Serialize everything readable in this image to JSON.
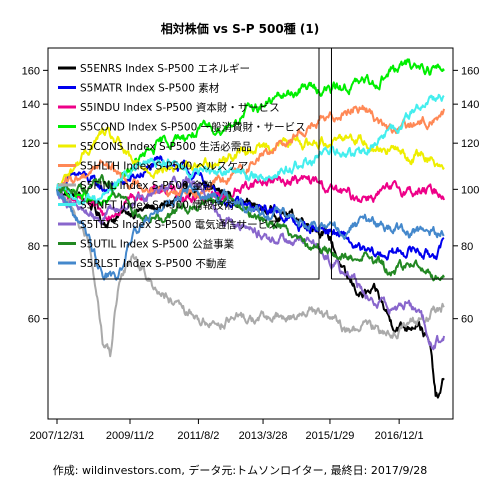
{
  "caption": "作成: wildinvestors.com, データ元:トムソンロイター, 最終日: 2017/9/28",
  "chart_data": {
    "type": "line",
    "title": "相対株価 vs S-P 500種 (1)",
    "xlabel": "",
    "ylabel": "",
    "y_scale": "log",
    "ylim": [
      43,
      168
    ],
    "y_ticks": [
      60,
      80,
      100,
      120,
      140,
      160
    ],
    "x_tick_labels": [
      "2007/12/31",
      "2009/11/2",
      "2011/8/2",
      "2013/3/28",
      "2015/1/29",
      "2016/12/1"
    ],
    "x_tick_index": [
      0,
      96,
      186,
      271,
      359,
      450
    ],
    "n_points": 510,
    "vertical_marker_index": 361,
    "grid": false,
    "legend_position": "top-left",
    "series": [
      {
        "name": "S5ENRS Index S-P500 エネルギー",
        "color": "#000000",
        "points": [
          [
            0,
            100
          ],
          [
            40,
            96
          ],
          [
            60,
            88
          ],
          [
            100,
            92
          ],
          [
            140,
            93
          ],
          [
            180,
            100
          ],
          [
            210,
            100
          ],
          [
            240,
            96
          ],
          [
            270,
            92
          ],
          [
            300,
            91
          ],
          [
            330,
            88
          ],
          [
            345,
            86
          ],
          [
            360,
            82
          ],
          [
            380,
            70
          ],
          [
            400,
            66
          ],
          [
            420,
            66
          ],
          [
            440,
            59
          ],
          [
            460,
            58
          ],
          [
            475,
            60
          ],
          [
            490,
            54
          ],
          [
            498,
            44
          ],
          [
            503,
            44
          ],
          [
            509,
            47
          ]
        ]
      },
      {
        "name": "S5MATR Index S-P500 素材",
        "color": "#0000ee",
        "points": [
          [
            0,
            100
          ],
          [
            30,
            106
          ],
          [
            60,
            100
          ],
          [
            100,
            104
          ],
          [
            140,
            112
          ],
          [
            180,
            106
          ],
          [
            220,
            96
          ],
          [
            260,
            92
          ],
          [
            290,
            92
          ],
          [
            320,
            86
          ],
          [
            345,
            86
          ],
          [
            360,
            85
          ],
          [
            380,
            82
          ],
          [
            400,
            78
          ],
          [
            420,
            77
          ],
          [
            450,
            78
          ],
          [
            470,
            79
          ],
          [
            490,
            77
          ],
          [
            509,
            80
          ]
        ]
      },
      {
        "name": "S5INDU Index S-P500 資本財・サービス",
        "color": "#ee0088",
        "points": [
          [
            0,
            100
          ],
          [
            30,
            95
          ],
          [
            60,
            90
          ],
          [
            100,
            97
          ],
          [
            140,
            100
          ],
          [
            180,
            97
          ],
          [
            220,
            97
          ],
          [
            260,
            103
          ],
          [
            300,
            104
          ],
          [
            340,
            103
          ],
          [
            360,
            100
          ],
          [
            390,
            97
          ],
          [
            420,
            98
          ],
          [
            450,
            100
          ],
          [
            480,
            99
          ],
          [
            509,
            99
          ]
        ]
      },
      {
        "name": "S5COND Index S-P500 一般消費財・サービス",
        "color": "#00ee00",
        "points": [
          [
            0,
            100
          ],
          [
            30,
            98
          ],
          [
            60,
            93
          ],
          [
            100,
            110
          ],
          [
            140,
            120
          ],
          [
            180,
            125
          ],
          [
            220,
            128
          ],
          [
            260,
            138
          ],
          [
            300,
            145
          ],
          [
            330,
            150
          ],
          [
            360,
            148
          ],
          [
            380,
            150
          ],
          [
            400,
            152
          ],
          [
            420,
            153
          ],
          [
            440,
            160
          ],
          [
            460,
            163
          ],
          [
            480,
            163
          ],
          [
            495,
            161
          ],
          [
            509,
            160
          ]
        ]
      },
      {
        "name": "S5CONS Index S-P500 生活必需品",
        "color": "#eeee00",
        "points": [
          [
            0,
            100
          ],
          [
            30,
            112
          ],
          [
            60,
            125
          ],
          [
            80,
            120
          ],
          [
            100,
            110
          ],
          [
            140,
            108
          ],
          [
            180,
            110
          ],
          [
            220,
            113
          ],
          [
            260,
            118
          ],
          [
            300,
            120
          ],
          [
            340,
            120
          ],
          [
            360,
            122
          ],
          [
            380,
            124
          ],
          [
            400,
            122
          ],
          [
            420,
            118
          ],
          [
            440,
            118
          ],
          [
            460,
            113
          ],
          [
            480,
            115
          ],
          [
            500,
            112
          ],
          [
            509,
            110
          ]
        ]
      },
      {
        "name": "S5HLTH Index S-P500 ヘルスケア",
        "color": "#ff8855",
        "points": [
          [
            0,
            100
          ],
          [
            30,
            105
          ],
          [
            60,
            112
          ],
          [
            100,
            102
          ],
          [
            140,
            100
          ],
          [
            180,
            100
          ],
          [
            220,
            103
          ],
          [
            260,
            112
          ],
          [
            300,
            121
          ],
          [
            330,
            128
          ],
          [
            360,
            132
          ],
          [
            380,
            138
          ],
          [
            400,
            139
          ],
          [
            420,
            133
          ],
          [
            440,
            125
          ],
          [
            460,
            128
          ],
          [
            480,
            130
          ],
          [
            500,
            133
          ],
          [
            509,
            135
          ]
        ]
      },
      {
        "name": "S5FINL Index S-P500 金融",
        "color": "#aaaaaa",
        "points": [
          [
            0,
            100
          ],
          [
            20,
            92
          ],
          [
            40,
            82
          ],
          [
            60,
            55
          ],
          [
            70,
            52
          ],
          [
            80,
            66
          ],
          [
            100,
            78
          ],
          [
            120,
            70
          ],
          [
            160,
            62
          ],
          [
            200,
            59
          ],
          [
            240,
            60
          ],
          [
            270,
            60
          ],
          [
            300,
            60
          ],
          [
            330,
            62
          ],
          [
            360,
            60
          ],
          [
            380,
            57
          ],
          [
            400,
            58
          ],
          [
            420,
            58
          ],
          [
            440,
            57
          ],
          [
            460,
            58
          ],
          [
            480,
            60
          ],
          [
            500,
            62
          ],
          [
            509,
            63
          ]
        ]
      },
      {
        "name": "S5INFT Index S-P500 情報技術",
        "color": "#44eeee",
        "points": [
          [
            0,
            100
          ],
          [
            30,
            96
          ],
          [
            60,
            97
          ],
          [
            100,
            108
          ],
          [
            140,
            112
          ],
          [
            180,
            106
          ],
          [
            220,
            108
          ],
          [
            260,
            105
          ],
          [
            300,
            108
          ],
          [
            340,
            113
          ],
          [
            360,
            116
          ],
          [
            380,
            115
          ],
          [
            400,
            114
          ],
          [
            420,
            120
          ],
          [
            440,
            126
          ],
          [
            460,
            132
          ],
          [
            480,
            140
          ],
          [
            495,
            144
          ],
          [
            509,
            144
          ]
        ]
      },
      {
        "name": "S5TELS Index S-P500 電気通信サービス",
        "color": "#8866cc",
        "points": [
          [
            0,
            100
          ],
          [
            30,
            92
          ],
          [
            60,
            90
          ],
          [
            100,
            95
          ],
          [
            140,
            102
          ],
          [
            180,
            104
          ],
          [
            220,
            90
          ],
          [
            260,
            84
          ],
          [
            300,
            82
          ],
          [
            340,
            80
          ],
          [
            360,
            76
          ],
          [
            380,
            72
          ],
          [
            400,
            68
          ],
          [
            420,
            64
          ],
          [
            440,
            62
          ],
          [
            460,
            64
          ],
          [
            480,
            60
          ],
          [
            495,
            54
          ],
          [
            509,
            56
          ]
        ]
      },
      {
        "name": "S5UTIL Index S-P500 公益事業",
        "color": "#228822",
        "points": [
          [
            0,
            100
          ],
          [
            30,
            100
          ],
          [
            60,
            104
          ],
          [
            100,
            92
          ],
          [
            140,
            90
          ],
          [
            180,
            95
          ],
          [
            220,
            97
          ],
          [
            260,
            90
          ],
          [
            300,
            86
          ],
          [
            340,
            80
          ],
          [
            360,
            78
          ],
          [
            380,
            76
          ],
          [
            400,
            78
          ],
          [
            420,
            75
          ],
          [
            440,
            72
          ],
          [
            460,
            74
          ],
          [
            480,
            74
          ],
          [
            495,
            71
          ],
          [
            509,
            71
          ]
        ]
      },
      {
        "name": "S5RLST Index S-P500 不動産",
        "color": "#4488cc",
        "points": [
          [
            0,
            100
          ],
          [
            30,
            88
          ],
          [
            60,
            72
          ],
          [
            80,
            70
          ],
          [
            100,
            85
          ],
          [
            140,
            94
          ],
          [
            180,
            100
          ],
          [
            220,
            96
          ],
          [
            260,
            92
          ],
          [
            300,
            90
          ],
          [
            340,
            86
          ],
          [
            360,
            86
          ],
          [
            380,
            85
          ],
          [
            400,
            88
          ],
          [
            420,
            88
          ],
          [
            440,
            86
          ],
          [
            460,
            84
          ],
          [
            480,
            85
          ],
          [
            500,
            84
          ],
          [
            509,
            84
          ]
        ]
      }
    ]
  }
}
